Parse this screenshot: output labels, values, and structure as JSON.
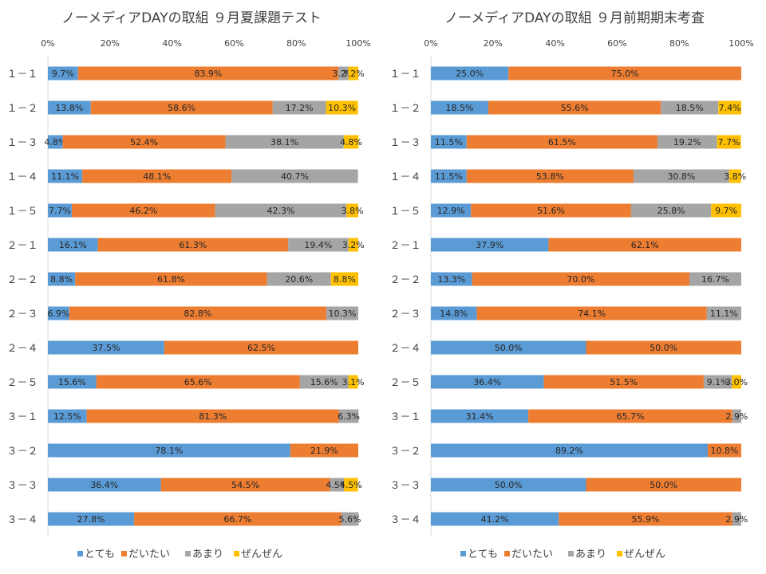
{
  "chart_data": [
    {
      "type": "bar",
      "orientation": "horizontal",
      "stacked": "100%",
      "title": "ノーメディアDAYの取組 ９月夏課題テスト",
      "categories": [
        "１－１",
        "１－２",
        "１－３",
        "１－４",
        "１－５",
        "２－１",
        "２－２",
        "２－３",
        "２－４",
        "２－５",
        "３－１",
        "３－２",
        "３－３",
        "３－４"
      ],
      "x_ticks": [
        "0%",
        "20%",
        "40%",
        "60%",
        "80%",
        "100%"
      ],
      "series": [
        {
          "name": "とても",
          "color": "#5B9BD5",
          "values": [
            9.7,
            13.8,
            4.8,
            11.1,
            7.7,
            16.1,
            8.8,
            6.9,
            37.5,
            15.6,
            12.5,
            78.1,
            36.4,
            27.8
          ]
        },
        {
          "name": "だいたい",
          "color": "#ED7D31",
          "values": [
            83.9,
            58.6,
            52.4,
            48.1,
            46.2,
            61.3,
            61.8,
            82.8,
            62.5,
            65.6,
            81.3,
            21.9,
            54.5,
            66.7
          ]
        },
        {
          "name": "あまり",
          "color": "#A5A5A5",
          "values": [
            3.2,
            17.2,
            38.1,
            40.7,
            42.3,
            19.4,
            20.6,
            10.3,
            0,
            15.6,
            6.3,
            0,
            4.5,
            5.6
          ]
        },
        {
          "name": "ぜんぜん",
          "color": "#FFC000",
          "values": [
            3.2,
            10.3,
            4.8,
            0,
            3.8,
            3.2,
            8.8,
            0,
            0,
            3.1,
            0,
            0,
            4.5,
            0
          ]
        }
      ],
      "legend_position": "bottom",
      "grid": false
    },
    {
      "type": "bar",
      "orientation": "horizontal",
      "stacked": "100%",
      "title": "ノーメディアDAYの取組 ９月前期期末考査",
      "categories": [
        "１－１",
        "１－２",
        "１－３",
        "１－４",
        "１－５",
        "２－１",
        "２－２",
        "２－３",
        "２－４",
        "２－５",
        "３－１",
        "３－２",
        "３－３",
        "３－４"
      ],
      "x_ticks": [
        "0%",
        "20%",
        "40%",
        "60%",
        "80%",
        "100%"
      ],
      "series": [
        {
          "name": "とても",
          "color": "#5B9BD5",
          "values": [
            25.0,
            18.5,
            11.5,
            11.5,
            12.9,
            37.9,
            13.3,
            14.8,
            50.0,
            36.4,
            31.4,
            89.2,
            50.0,
            41.2
          ]
        },
        {
          "name": "だいたい",
          "color": "#ED7D31",
          "values": [
            75.0,
            55.6,
            61.5,
            53.8,
            51.6,
            62.1,
            70.0,
            74.1,
            50.0,
            51.5,
            65.7,
            10.8,
            50.0,
            55.9
          ]
        },
        {
          "name": "あまり",
          "color": "#A5A5A5",
          "values": [
            0,
            18.5,
            19.2,
            30.8,
            25.8,
            0,
            16.7,
            11.1,
            0,
            9.1,
            2.9,
            0,
            0,
            2.9
          ]
        },
        {
          "name": "ぜんぜん",
          "color": "#FFC000",
          "values": [
            0,
            7.4,
            7.7,
            3.8,
            9.7,
            0,
            0,
            0,
            0,
            3.0,
            0,
            0,
            0,
            0
          ]
        }
      ],
      "legend_position": "bottom",
      "grid": false
    }
  ]
}
